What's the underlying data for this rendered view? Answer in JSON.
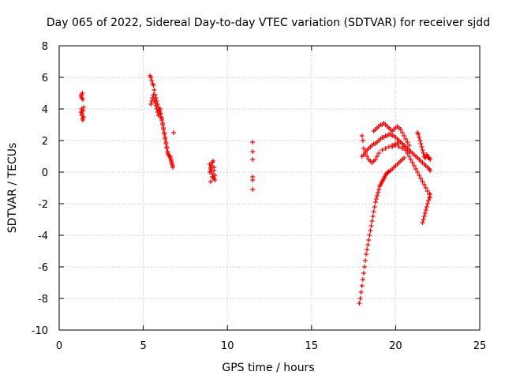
{
  "chart_data": {
    "type": "scatter",
    "title": "Day 065 of 2022, Sidereal Day-to-day VTEC variation (SDTVAR) for receiver sjdd",
    "xlabel": "GPS time / hours",
    "ylabel": "SDTVAR / TECUs",
    "xlim": [
      0,
      25
    ],
    "ylim": [
      -10,
      8
    ],
    "x_ticks": [
      "0",
      "5",
      "10",
      "15",
      "20",
      "25"
    ],
    "y_ticks": [
      "-10",
      "-8",
      "-6",
      "-4",
      "-2",
      "0",
      "2",
      "4",
      "6",
      "8"
    ],
    "grid": true,
    "marker": "plus",
    "color": "#ee0000",
    "series": [
      {
        "x": [
          1.3,
          1.32,
          1.35,
          1.38,
          1.4,
          1.42,
          1.45,
          1.3,
          1.33,
          1.36,
          1.39,
          1.42,
          1.45,
          1.35,
          1.4,
          5.4,
          5.45,
          5.5,
          5.55,
          5.6,
          5.65,
          5.7,
          5.75,
          5.8,
          5.85,
          5.9,
          5.95,
          6.0,
          6.05,
          6.1,
          6.15,
          6.2,
          6.25,
          6.3,
          6.35,
          6.4,
          6.45,
          6.5,
          6.55,
          6.6,
          6.65,
          6.7,
          6.75,
          5.45,
          5.5,
          5.55,
          5.6,
          5.65,
          5.7,
          5.75,
          5.8,
          5.85,
          5.9,
          5.95,
          6.0,
          6.05,
          6.1,
          6.15,
          6.2,
          6.25,
          6.3,
          6.35,
          6.4,
          6.45,
          6.6,
          6.65,
          6.7,
          6.75,
          6.8,
          8.95,
          9.0,
          9.05,
          9.1,
          9.15,
          9.2,
          9.25,
          8.95,
          9.0,
          9.05,
          9.1,
          9.15,
          9.2,
          9.25,
          9.0,
          9.1,
          9.2,
          11.5,
          11.5,
          11.5,
          11.5,
          11.5,
          11.5,
          17.85,
          17.9,
          17.95,
          18.0,
          18.05,
          18.1,
          18.15,
          18.2,
          18.25,
          18.3,
          18.35,
          18.4,
          18.45,
          18.5,
          18.55,
          18.6,
          18.65,
          18.7,
          18.75,
          18.8,
          18.85,
          18.9,
          18.95,
          19.0,
          19.05,
          19.1,
          19.15,
          19.2,
          19.25,
          19.3,
          19.35,
          19.4,
          19.45,
          19.5,
          19.55,
          19.6,
          19.7,
          19.8,
          19.9,
          20.0,
          20.1,
          20.2,
          20.3,
          20.4,
          20.5,
          18.0,
          18.1,
          18.2,
          18.3,
          18.4,
          18.5,
          18.6,
          18.7,
          18.8,
          18.9,
          19.0,
          19.1,
          19.2,
          19.3,
          19.4,
          19.5,
          19.6,
          19.7,
          19.8,
          19.9,
          20.0,
          20.1,
          20.2,
          20.3,
          20.4,
          20.5,
          20.6,
          20.7,
          20.8,
          20.9,
          21.0,
          21.1,
          21.2,
          21.3,
          21.4,
          21.5,
          21.6,
          21.7,
          21.8,
          21.9,
          22.0,
          22.05,
          18.0,
          18.05,
          18.1,
          18.2,
          18.3,
          18.4,
          18.5,
          18.6,
          18.7,
          18.8,
          18.9,
          19.0,
          19.2,
          19.4,
          19.6,
          19.8,
          20.0,
          20.2,
          20.4,
          20.6,
          20.8,
          18.7,
          18.8,
          18.9,
          19.0,
          19.1,
          19.2,
          19.3,
          19.4,
          19.5,
          19.6,
          19.7,
          19.8,
          19.9,
          20.0,
          20.1,
          20.2,
          20.3,
          20.4,
          20.5,
          20.6,
          20.7,
          20.8,
          19.8,
          19.9,
          20.0,
          20.1,
          20.2,
          20.3,
          20.4,
          20.5,
          20.6,
          20.7,
          20.8,
          20.9,
          21.0,
          21.1,
          21.2,
          21.3,
          21.4,
          21.5,
          21.6,
          21.7,
          21.8,
          21.9,
          22.0,
          22.05,
          21.3,
          21.35,
          21.4,
          21.45,
          21.5,
          21.55,
          21.6,
          21.65,
          21.7,
          21.75,
          21.8,
          21.85,
          21.9,
          21.95,
          22.0,
          22.05,
          21.6,
          21.65,
          21.7,
          21.75,
          21.8,
          21.85,
          21.9,
          21.95,
          22.0,
          22.05
        ],
        "y": [
          4.8,
          4.9,
          4.7,
          5.0,
          4.6,
          3.9,
          3.5,
          3.8,
          4.0,
          3.7,
          3.4,
          3.9,
          4.1,
          3.6,
          3.3,
          6.1,
          6.0,
          5.8,
          5.6,
          5.5,
          5.2,
          4.9,
          4.7,
          4.5,
          4.3,
          4.1,
          3.9,
          3.7,
          3.5,
          3.3,
          3.0,
          2.7,
          2.4,
          2.1,
          1.8,
          1.5,
          1.3,
          1.1,
          1.0,
          0.9,
          0.7,
          0.5,
          0.3,
          4.3,
          4.5,
          4.7,
          4.9,
          4.6,
          4.4,
          4.2,
          4.0,
          3.8,
          3.6,
          3.9,
          4.0,
          3.7,
          3.4,
          3.1,
          2.8,
          2.5,
          2.2,
          1.9,
          1.6,
          1.2,
          1.0,
          0.8,
          0.6,
          0.4,
          2.5,
          0.5,
          0.3,
          0.1,
          -0.1,
          -0.3,
          -0.4,
          -0.2,
          0.0,
          0.2,
          0.4,
          0.6,
          0.7,
          0.3,
          -0.5,
          -0.6,
          -0.3,
          0.1,
          1.9,
          1.3,
          0.8,
          -0.3,
          -0.5,
          -1.1,
          -8.3,
          -8.0,
          -7.6,
          -7.2,
          -6.8,
          -6.4,
          -6.0,
          -5.6,
          -5.2,
          -4.9,
          -4.6,
          -4.3,
          -4.0,
          -3.7,
          -3.4,
          -3.1,
          -2.8,
          -2.5,
          -2.2,
          -1.9,
          -1.7,
          -1.5,
          -1.3,
          -1.1,
          -0.9,
          -0.8,
          -0.7,
          -0.6,
          -0.5,
          -0.4,
          -0.3,
          -0.2,
          -0.1,
          -0.05,
          0.0,
          0.05,
          0.1,
          0.2,
          0.3,
          0.4,
          0.5,
          0.6,
          0.7,
          0.8,
          0.9,
          1.0,
          1.1,
          1.3,
          1.4,
          1.5,
          1.6,
          1.7,
          1.8,
          1.8,
          1.9,
          2.0,
          2.1,
          2.2,
          2.2,
          2.3,
          2.3,
          2.4,
          2.4,
          2.3,
          2.3,
          2.2,
          2.1,
          2.0,
          1.9,
          1.8,
          1.6,
          1.4,
          1.2,
          1.0,
          0.8,
          0.6,
          0.4,
          0.2,
          0.0,
          -0.2,
          -0.4,
          -0.6,
          -0.8,
          -1.0,
          -1.2,
          -1.4,
          -1.6,
          2.3,
          2.0,
          1.5,
          1.2,
          1.0,
          0.8,
          0.7,
          0.6,
          0.7,
          0.8,
          1.0,
          1.2,
          1.4,
          1.5,
          1.6,
          1.7,
          1.7,
          1.6,
          1.5,
          1.4,
          1.3,
          2.6,
          2.7,
          2.8,
          2.9,
          3.0,
          3.0,
          3.1,
          3.0,
          2.9,
          2.8,
          2.7,
          2.6,
          2.7,
          2.8,
          2.9,
          2.8,
          2.7,
          2.5,
          2.3,
          2.1,
          1.9,
          1.7,
          1.6,
          1.7,
          1.8,
          1.8,
          1.9,
          1.9,
          1.8,
          1.7,
          1.6,
          1.5,
          1.4,
          1.3,
          1.2,
          1.1,
          1.0,
          0.9,
          0.8,
          0.7,
          0.6,
          0.5,
          0.4,
          0.3,
          0.2,
          0.1,
          2.5,
          2.4,
          2.2,
          2.0,
          1.8,
          1.6,
          1.4,
          1.2,
          1.0,
          0.9,
          1.0,
          1.1,
          1.0,
          0.9,
          0.9,
          0.8,
          -3.2,
          -3.0,
          -2.8,
          -2.6,
          -2.4,
          -2.2,
          -2.0,
          -1.8,
          -1.6,
          -1.4
        ]
      }
    ]
  }
}
